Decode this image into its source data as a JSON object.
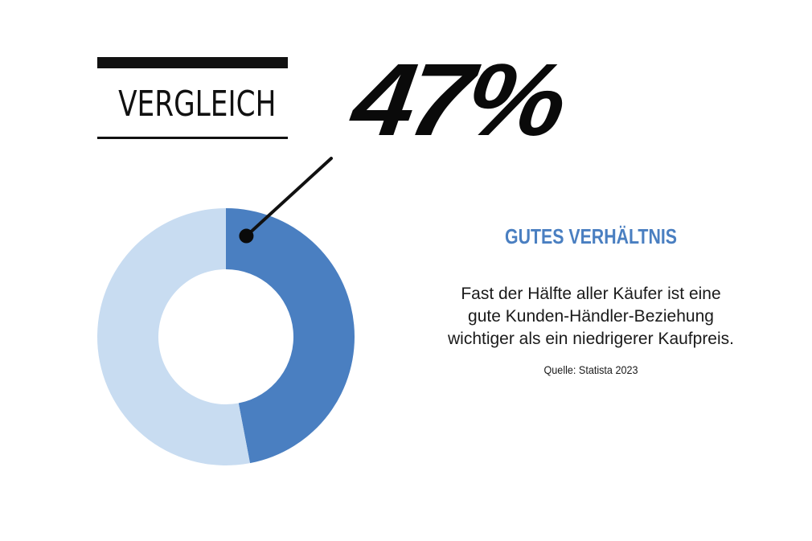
{
  "header": {
    "title": "VERGLEICH"
  },
  "headline": {
    "value_text": "47%"
  },
  "panel": {
    "subtitle": "GUTES VERHÄLTNIS",
    "description_lines": [
      "Fast der Hälfte aller Käufer ist eine",
      "gute Kunden-Händler-Beziehung",
      "wichtiger als ein niedrigerer Kaufpreis."
    ],
    "source": "Quelle: Statista 2023"
  },
  "chart_data": {
    "type": "pie",
    "variant": "donut",
    "categories": [
      "Gutes Verhältnis",
      "Rest"
    ],
    "values": [
      47,
      53
    ],
    "unit": "%",
    "colors": [
      "#4a7fc1",
      "#c8dcf1"
    ],
    "highlight_index": 0,
    "legend": "none"
  },
  "colors": {
    "accent": "#4a7fc1",
    "accent_light": "#c8dcf1",
    "text": "#111111"
  }
}
